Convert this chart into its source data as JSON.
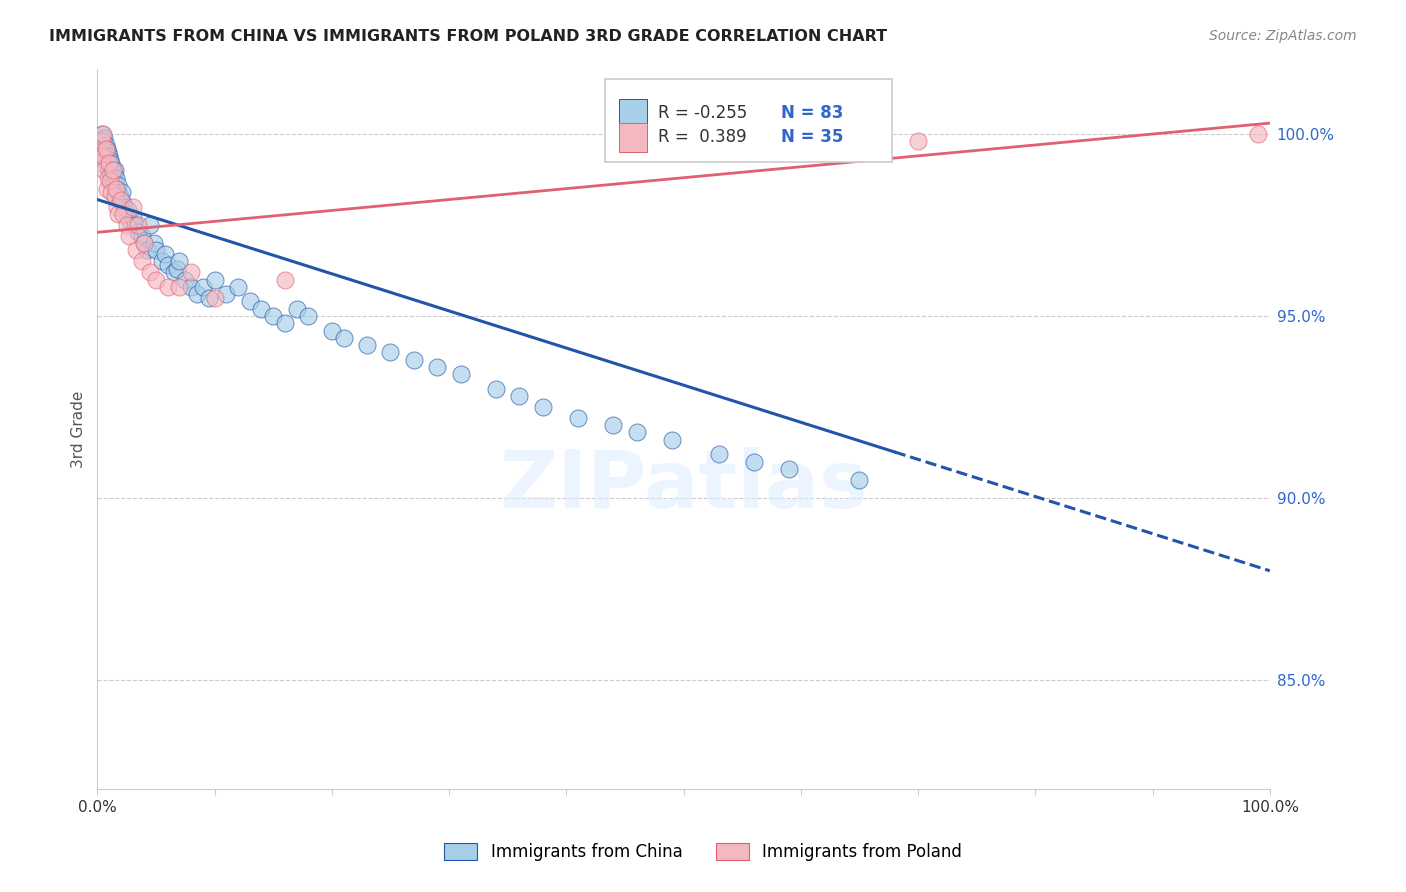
{
  "title": "IMMIGRANTS FROM CHINA VS IMMIGRANTS FROM POLAND 3RD GRADE CORRELATION CHART",
  "source": "Source: ZipAtlas.com",
  "ylabel": "3rd Grade",
  "right_yticks": [
    85.0,
    90.0,
    95.0,
    100.0
  ],
  "xlim": [
    0.0,
    1.0
  ],
  "ylim": [
    0.82,
    1.018
  ],
  "legend_china": "Immigrants from China",
  "legend_poland": "Immigrants from Poland",
  "R_china": -0.255,
  "N_china": 83,
  "R_poland": 0.389,
  "N_poland": 35,
  "color_china": "#a8cfe8",
  "color_poland": "#f4b8c1",
  "color_china_line": "#2255aa",
  "color_poland_line": "#e06070",
  "background_color": "#ffffff",
  "watermark": "ZIPatlas",
  "china_x": [
    0.002,
    0.003,
    0.004,
    0.004,
    0.005,
    0.005,
    0.006,
    0.006,
    0.007,
    0.007,
    0.008,
    0.008,
    0.009,
    0.009,
    0.01,
    0.01,
    0.011,
    0.011,
    0.012,
    0.012,
    0.013,
    0.013,
    0.014,
    0.014,
    0.015,
    0.016,
    0.017,
    0.018,
    0.019,
    0.02,
    0.021,
    0.022,
    0.023,
    0.025,
    0.026,
    0.028,
    0.03,
    0.032,
    0.035,
    0.038,
    0.04,
    0.042,
    0.045,
    0.048,
    0.05,
    0.055,
    0.058,
    0.06,
    0.065,
    0.068,
    0.07,
    0.075,
    0.08,
    0.085,
    0.09,
    0.095,
    0.1,
    0.11,
    0.12,
    0.13,
    0.14,
    0.15,
    0.16,
    0.17,
    0.18,
    0.2,
    0.21,
    0.23,
    0.25,
    0.27,
    0.29,
    0.31,
    0.34,
    0.36,
    0.38,
    0.41,
    0.44,
    0.46,
    0.49,
    0.53,
    0.56,
    0.59,
    0.65
  ],
  "china_y": [
    0.998,
    0.997,
    1.0,
    0.996,
    0.998,
    0.995,
    0.999,
    0.994,
    0.997,
    0.993,
    0.996,
    0.992,
    0.995,
    0.991,
    0.994,
    0.99,
    0.993,
    0.989,
    0.992,
    0.988,
    0.99,
    0.987,
    0.989,
    0.986,
    0.99,
    0.988,
    0.985,
    0.986,
    0.983,
    0.982,
    0.984,
    0.981,
    0.98,
    0.978,
    0.979,
    0.976,
    0.977,
    0.975,
    0.973,
    0.972,
    0.97,
    0.968,
    0.975,
    0.97,
    0.968,
    0.965,
    0.967,
    0.964,
    0.962,
    0.963,
    0.965,
    0.96,
    0.958,
    0.956,
    0.958,
    0.955,
    0.96,
    0.956,
    0.958,
    0.954,
    0.952,
    0.95,
    0.948,
    0.952,
    0.95,
    0.946,
    0.944,
    0.942,
    0.94,
    0.938,
    0.936,
    0.934,
    0.93,
    0.928,
    0.925,
    0.922,
    0.92,
    0.918,
    0.916,
    0.912,
    0.91,
    0.908,
    0.905
  ],
  "poland_x": [
    0.002,
    0.003,
    0.004,
    0.005,
    0.005,
    0.006,
    0.007,
    0.008,
    0.009,
    0.01,
    0.011,
    0.012,
    0.013,
    0.015,
    0.016,
    0.017,
    0.018,
    0.02,
    0.022,
    0.025,
    0.027,
    0.03,
    0.033,
    0.035,
    0.038,
    0.04,
    0.045,
    0.05,
    0.06,
    0.07,
    0.08,
    0.1,
    0.16,
    0.7,
    0.99
  ],
  "poland_y": [
    0.995,
    0.992,
    0.998,
    0.994,
    1.0,
    0.99,
    0.996,
    0.985,
    0.988,
    0.992,
    0.987,
    0.984,
    0.99,
    0.983,
    0.985,
    0.98,
    0.978,
    0.982,
    0.978,
    0.975,
    0.972,
    0.98,
    0.968,
    0.975,
    0.965,
    0.97,
    0.962,
    0.96,
    0.958,
    0.958,
    0.962,
    0.955,
    0.96,
    0.998,
    1.0
  ],
  "trend_china_x0": 0.0,
  "trend_china_y0": 0.982,
  "trend_china_x1": 1.0,
  "trend_china_y1": 0.88,
  "trend_china_solid_end": 0.68,
  "trend_poland_x0": 0.0,
  "trend_poland_y0": 0.973,
  "trend_poland_x1": 1.0,
  "trend_poland_y1": 1.003
}
